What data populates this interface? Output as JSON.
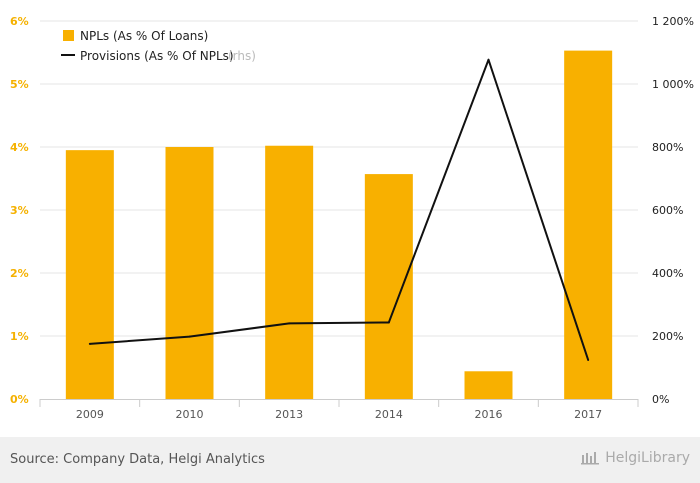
{
  "chart_data": {
    "type": "bar",
    "categories": [
      "2009",
      "2010",
      "2013",
      "2014",
      "2016",
      "2017"
    ],
    "series": [
      {
        "name": "NPLs (As % Of Loans)",
        "type": "bar",
        "axis": "left",
        "color": "#f8b000",
        "values": [
          3.95,
          4.0,
          4.02,
          3.57,
          0.44,
          5.53
        ]
      },
      {
        "name": "Provisions (As % Of NPLs)",
        "type": "line",
        "axis": "right",
        "color": "#111111",
        "values": [
          175,
          198,
          240,
          243,
          1077,
          124
        ]
      }
    ],
    "legend_rhs_suffix": "(rhs)",
    "y_left": {
      "min": 0,
      "max": 6,
      "ticks": [
        "0%",
        "1%",
        "2%",
        "3%",
        "4%",
        "5%",
        "6%"
      ]
    },
    "y_right": {
      "min": 0,
      "max": 1200,
      "ticks": [
        "0%",
        "200%",
        "400%",
        "600%",
        "800%",
        "1 000%",
        "1 200%"
      ]
    },
    "grid": true,
    "legend_position": "top-left"
  },
  "footer": {
    "source": "Source: Company Data, Helgi Analytics",
    "brand": "HelgiLibrary"
  }
}
